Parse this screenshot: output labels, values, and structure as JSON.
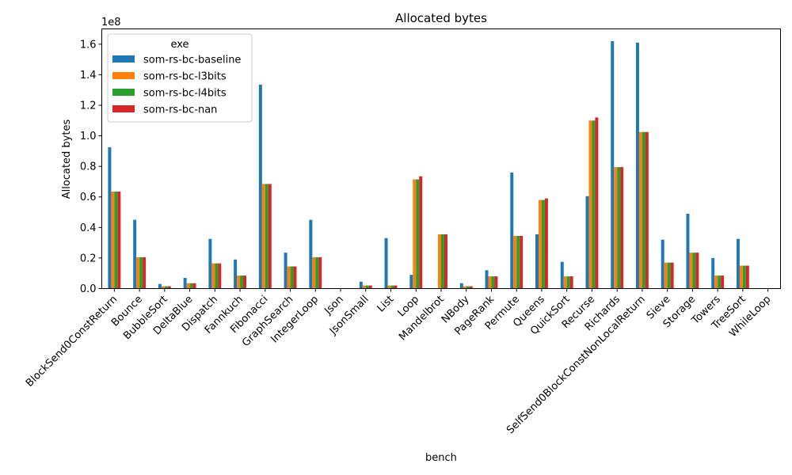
{
  "chart_data": {
    "type": "bar",
    "title": "Allocated bytes",
    "xlabel": "bench",
    "ylabel": "Allocated bytes",
    "y_multiplier_label": "1e8",
    "ylim": [
      0,
      1.7
    ],
    "yticks": [
      0.0,
      0.2,
      0.4,
      0.6,
      0.8,
      1.0,
      1.2,
      1.4,
      1.6
    ],
    "ytick_labels": [
      "0.0",
      "0.2",
      "0.4",
      "0.6",
      "0.8",
      "1.0",
      "1.2",
      "1.4",
      "1.6"
    ],
    "grid": false,
    "legend": {
      "title": "exe",
      "placement": "top-left"
    },
    "categories": [
      "BlockSend0ConstReturn",
      "Bounce",
      "BubbleSort",
      "DeltaBlue",
      "Dispatch",
      "Fannkuch",
      "Fibonacci",
      "GraphSearch",
      "IntegerLoop",
      "Json",
      "JsonSmall",
      "List",
      "Loop",
      "Mandelbrot",
      "NBody",
      "PageRank",
      "Permute",
      "Queens",
      "QuickSort",
      "Recurse",
      "Richards",
      "SelfSend0BlockConstNonLocalReturn",
      "Sieve",
      "Storage",
      "Towers",
      "TreeSort",
      "WhileLoop"
    ],
    "series": [
      {
        "name": "som-rs-bc-baseline",
        "color": "#1f77b4",
        "values": [
          0.925,
          0.45,
          0.03,
          0.07,
          0.325,
          0.19,
          1.335,
          0.235,
          0.45,
          0.0,
          0.045,
          0.33,
          0.09,
          0.0,
          0.035,
          0.12,
          0.76,
          0.355,
          0.175,
          0.605,
          1.62,
          1.61,
          0.32,
          0.49,
          0.2,
          0.325,
          0.0
        ]
      },
      {
        "name": "som-rs-bc-l3bits",
        "color": "#ff7f0e",
        "values": [
          0.635,
          0.205,
          0.015,
          0.035,
          0.165,
          0.085,
          0.685,
          0.145,
          0.205,
          0.0,
          0.02,
          0.02,
          0.715,
          0.355,
          0.015,
          0.08,
          0.345,
          0.58,
          0.08,
          1.1,
          0.795,
          1.025,
          0.17,
          0.235,
          0.085,
          0.15,
          0.0
        ]
      },
      {
        "name": "som-rs-bc-l4bits",
        "color": "#2ca02c",
        "values": [
          0.635,
          0.205,
          0.015,
          0.035,
          0.165,
          0.085,
          0.685,
          0.145,
          0.205,
          0.0,
          0.02,
          0.02,
          0.715,
          0.355,
          0.015,
          0.08,
          0.345,
          0.58,
          0.08,
          1.1,
          0.795,
          1.025,
          0.17,
          0.235,
          0.085,
          0.15,
          0.0
        ]
      },
      {
        "name": "som-rs-bc-nan",
        "color": "#d62728",
        "values": [
          0.635,
          0.205,
          0.015,
          0.035,
          0.165,
          0.085,
          0.685,
          0.145,
          0.205,
          0.0,
          0.02,
          0.02,
          0.735,
          0.355,
          0.015,
          0.08,
          0.345,
          0.59,
          0.08,
          1.12,
          0.795,
          1.025,
          0.17,
          0.235,
          0.085,
          0.15,
          0.0
        ]
      }
    ]
  }
}
